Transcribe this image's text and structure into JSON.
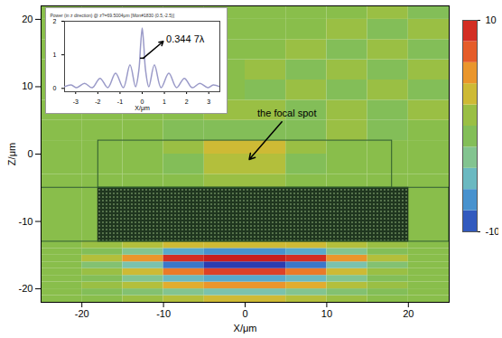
{
  "chart_data": {
    "type": "heatmap",
    "x_label": "X/μm",
    "y_label": "Z/μm",
    "xlim": [
      -25,
      25
    ],
    "ylim": [
      -22,
      22
    ],
    "xticks": [
      -20,
      -10,
      0,
      10,
      20
    ],
    "yticks": [
      -20,
      -10,
      0,
      10,
      20
    ],
    "x_bins": [
      -25,
      -20,
      -15,
      -10,
      -5,
      0,
      5,
      10,
      15,
      20,
      25
    ],
    "y_bins": [
      -22,
      -21,
      -20,
      -19,
      -18,
      -17,
      -16,
      -15,
      -14,
      -13,
      -5,
      -3,
      0,
      2,
      5,
      8,
      11,
      14,
      17,
      20,
      22
    ],
    "cells": [
      [
        0,
        0,
        1,
        2,
        3,
        3,
        2,
        1,
        0,
        0
      ],
      [
        0,
        -1,
        -2,
        -3,
        -4,
        -4,
        -3,
        -2,
        -1,
        0
      ],
      [
        0,
        1,
        2,
        4,
        5,
        5,
        4,
        2,
        1,
        0
      ],
      [
        0,
        -1,
        -3,
        -5,
        -6,
        -6,
        -5,
        -3,
        -1,
        0
      ],
      [
        0,
        1,
        3,
        6,
        8,
        8,
        6,
        3,
        1,
        0
      ],
      [
        0,
        -2,
        -4,
        -8,
        -10,
        -10,
        -8,
        -4,
        -2,
        0
      ],
      [
        0,
        2,
        5,
        9,
        10,
        10,
        9,
        5,
        2,
        0
      ],
      [
        0,
        -1,
        -3,
        -6,
        -7,
        -7,
        -6,
        -3,
        -1,
        0
      ],
      [
        0,
        1,
        2,
        3,
        3,
        3,
        3,
        2,
        1,
        0
      ],
      [
        0,
        0,
        0,
        1,
        1,
        1,
        1,
        0,
        0,
        0
      ],
      [
        0,
        0,
        0,
        0,
        1,
        1,
        0,
        0,
        0,
        0
      ],
      [
        0,
        0,
        0,
        -1,
        2,
        2,
        -1,
        0,
        0,
        0
      ],
      [
        0,
        0,
        0,
        1,
        3,
        3,
        1,
        0,
        0,
        0
      ],
      [
        0,
        0,
        0,
        -1,
        -1,
        -1,
        -1,
        1,
        -1,
        0
      ],
      [
        0,
        0,
        0,
        0,
        1,
        1,
        -1,
        1,
        -1,
        1
      ],
      [
        0,
        0,
        0,
        0,
        0,
        -1,
        1,
        -1,
        1,
        -1
      ],
      [
        0,
        0,
        0,
        0,
        0,
        1,
        -1,
        1,
        -1,
        1
      ],
      [
        0,
        0,
        0,
        0,
        0,
        0,
        1,
        -1,
        1,
        -1
      ],
      [
        0,
        0,
        0,
        0,
        0,
        0,
        0,
        1,
        -1,
        1
      ],
      [
        0,
        0,
        0,
        0,
        0,
        0,
        0,
        0,
        1,
        -1
      ]
    ],
    "colorbar": {
      "range": [
        -10,
        10
      ],
      "ticks": [
        10,
        -10
      ]
    },
    "layers": [
      {
        "x": [
          -25,
          25
        ],
        "z": [
          -13,
          -5
        ]
      },
      {
        "x": [
          -18,
          18
        ],
        "z": [
          -5,
          2
        ]
      }
    ],
    "device": {
      "x": [
        -18,
        20
      ],
      "z": [
        -13,
        -5
      ]
    },
    "annotations": [
      {
        "text": "the focal spot",
        "x": 1.5,
        "y": 6,
        "arrow": [
          4.5,
          4.8,
          0.5,
          -0.8
        ]
      }
    ],
    "inset": {
      "type": "line",
      "title": "Power (in z direction) @ z?=69.5004μm [Mon#1830 (0.5,-2.5)]",
      "x_label": "X/μm",
      "xlim": [
        -3.5,
        3.5
      ],
      "ylim": [
        -0.1,
        2
      ],
      "xticks": [
        -3,
        -2,
        -1,
        0,
        1,
        2,
        3
      ],
      "yticks": [
        0,
        1,
        2
      ],
      "x": [
        -3.5,
        -3.2,
        -2.95,
        -2.6,
        -2.25,
        -1.9,
        -1.55,
        -1.2,
        -0.85,
        -0.55,
        -0.3,
        -0.15,
        -0.07,
        0,
        0.07,
        0.15,
        0.3,
        0.55,
        0.85,
        1.2,
        1.55,
        1.9,
        2.25,
        2.6,
        2.95,
        3.2,
        3.5
      ],
      "values": [
        0.05,
        0.1,
        0.02,
        0.15,
        0.02,
        0.3,
        0.02,
        0.45,
        0.02,
        0.7,
        0.05,
        0.55,
        1.3,
        1.8,
        1.3,
        0.55,
        0.05,
        0.7,
        0.02,
        0.45,
        0.02,
        0.3,
        0.02,
        0.15,
        0.02,
        0.1,
        0.05
      ],
      "color": "#9a9ac8",
      "annotations": [
        {
          "text": "0.344 7λ",
          "x": 1.0,
          "y": 1.45,
          "arrow": [
            0.05,
            0.9,
            0.95,
            1.4
          ],
          "bar": [
            -0.1,
            0.1,
            0.9
          ]
        }
      ]
    }
  }
}
